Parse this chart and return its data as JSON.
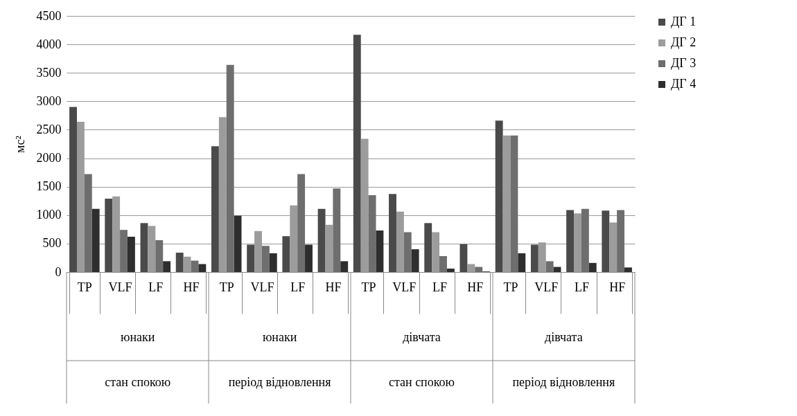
{
  "chart_data": {
    "type": "bar",
    "ylabel": "мс²",
    "categories": [
      "TP",
      "VLF",
      "LF",
      "HF",
      "TP",
      "VLF",
      "LF",
      "HF",
      "TP",
      "VLF",
      "LF",
      "HF",
      "TP",
      "VLF",
      "LF",
      "HF"
    ],
    "series": [
      {
        "name": "ДГ 1",
        "color": "#4a4a4a",
        "values": [
          2900,
          1290,
          860,
          340,
          2210,
          480,
          630,
          1110,
          4170,
          1370,
          860,
          490,
          2660,
          480,
          1090,
          1080
        ]
      },
      {
        "name": "ДГ 2",
        "color": "#9c9c9c",
        "values": [
          2640,
          1330,
          810,
          270,
          2720,
          720,
          1170,
          830,
          2340,
          1060,
          700,
          140,
          2400,
          520,
          1030,
          870
        ]
      },
      {
        "name": "ДГ 3",
        "color": "#6e6e6e",
        "values": [
          1720,
          740,
          560,
          200,
          3640,
          460,
          1720,
          1470,
          1350,
          700,
          280,
          90,
          2400,
          190,
          1110,
          1090
        ]
      },
      {
        "name": "ДГ 4",
        "color": "#2e2e2e",
        "values": [
          1110,
          620,
          190,
          140,
          990,
          330,
          480,
          190,
          730,
          400,
          60,
          10,
          330,
          90,
          160,
          80
        ]
      }
    ],
    "annotations": [
      "юнаки",
      "юнаки",
      "дівчата",
      "дівчата",
      "стан спокою",
      "період відновлення",
      "стан спокою",
      "період відновлення"
    ],
    "ylim": [
      0,
      4500
    ],
    "yticks": [
      0,
      500,
      1000,
      1500,
      2000,
      2500,
      3000,
      3500,
      4000,
      4500
    ],
    "grid": "y",
    "legend": "right"
  }
}
